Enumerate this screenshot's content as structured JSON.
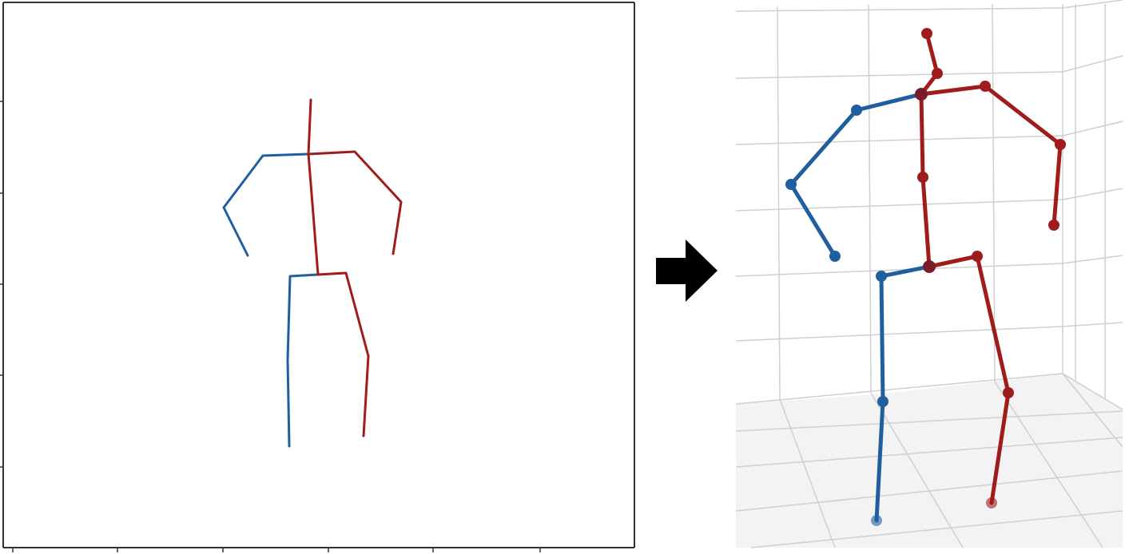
{
  "figure": {
    "left_panel": {
      "kind": "2d-pose-plot",
      "x_ticks": 6,
      "y_ticks": 5
    },
    "arrow": {
      "icon": "right-arrow-icon",
      "color": "#000000"
    },
    "right_panel": {
      "kind": "3d-pose-plot"
    },
    "colors": {
      "left_side": "#1f5fa0",
      "right_side": "#a01c1c",
      "axes_frame": "#333333",
      "grid": "#cfcfcf",
      "floor": "#f3f3f3"
    }
  }
}
